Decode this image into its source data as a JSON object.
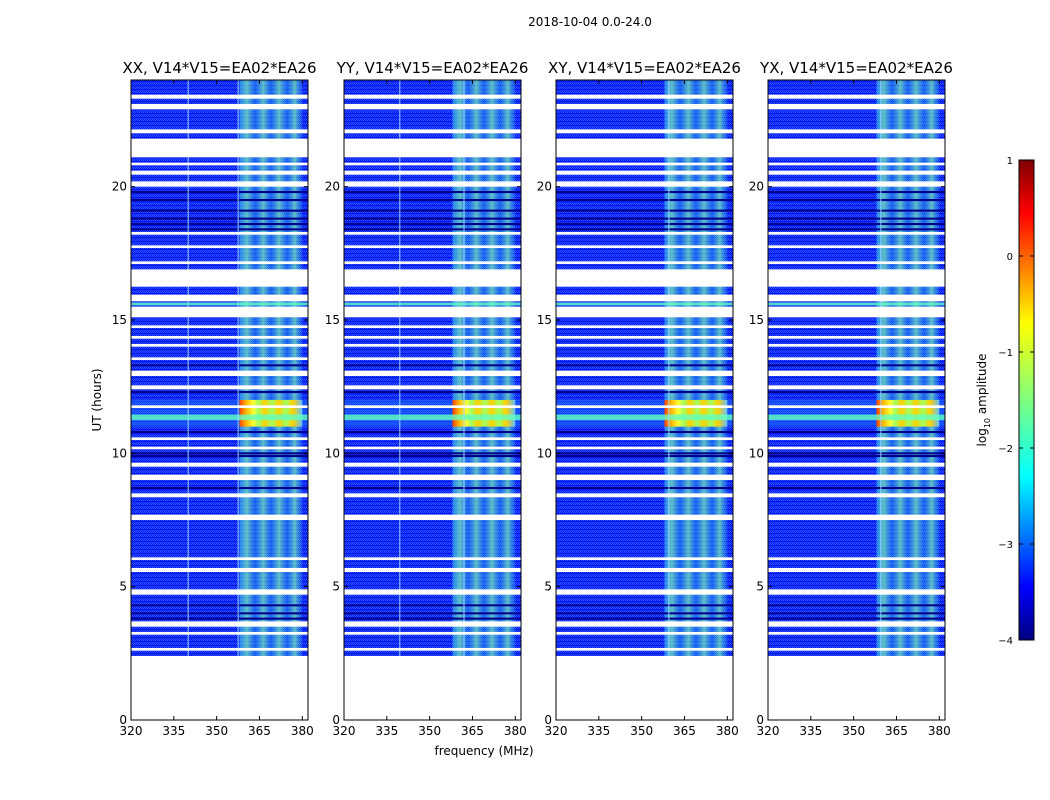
{
  "figure": {
    "suptitle": "2018-10-04 0.0-24.0",
    "xlabel": "frequency (MHz)",
    "ylabel": "UT (hours)",
    "colorbar_label_prefix": "log",
    "colorbar_label_sub": "10",
    "colorbar_label_suffix": " amplitude"
  },
  "chart_data": {
    "type": "heatmap",
    "description_of_axes": "waterfall: frequency vs UT, color = log10 amplitude",
    "xlim": [
      320,
      382
    ],
    "ylim": [
      0,
      24
    ],
    "xticks": [
      320,
      335,
      350,
      365,
      380
    ],
    "yticks": [
      0,
      5,
      10,
      15,
      20
    ],
    "color_range": [
      -4,
      1
    ],
    "colorbar_ticks": [
      1,
      0,
      -1,
      -2,
      -3,
      -4
    ],
    "colorbar_tick_labels": [
      "1",
      "0",
      "−1",
      "−2",
      "−3",
      "−4"
    ],
    "data_start_ut": 2.4,
    "panels": [
      {
        "title": "XX, V14*V15=EA02*EA26",
        "vertical_line_mhz": [
          340,
          357.5
        ]
      },
      {
        "title": "YY, V14*V15=EA02*EA26",
        "vertical_line_mhz": [
          339.5,
          362
        ]
      },
      {
        "title": "XY, V14*V15=EA02*EA26",
        "vertical_line_mhz": [
          359.5
        ]
      },
      {
        "title": "YX, V14*V15=EA02*EA26",
        "vertical_line_mhz": [
          359.5
        ]
      }
    ],
    "bright_band_mhz": [
      358,
      380
    ],
    "strong_activity_ut": [
      11.0,
      12.0
    ],
    "blank_ut_gaps": [
      [
        23.3,
        23.45
      ],
      [
        22.9,
        23.1
      ],
      [
        22.0,
        22.15
      ],
      [
        21.1,
        21.8
      ],
      [
        20.8,
        20.9
      ],
      [
        20.45,
        20.6
      ],
      [
        20.0,
        20.2
      ],
      [
        18.2,
        18.3
      ],
      [
        17.7,
        17.8
      ],
      [
        17.1,
        17.2
      ],
      [
        16.25,
        16.9
      ],
      [
        15.7,
        15.95
      ],
      [
        15.1,
        15.5
      ],
      [
        14.7,
        14.8
      ],
      [
        14.3,
        14.4
      ],
      [
        14.0,
        14.1
      ],
      [
        13.5,
        13.6
      ],
      [
        12.9,
        13.1
      ],
      [
        12.4,
        12.55
      ],
      [
        11.7,
        11.8
      ],
      [
        10.5,
        10.6
      ],
      [
        10.15,
        10.25
      ],
      [
        9.5,
        9.65
      ],
      [
        9.0,
        9.2
      ],
      [
        8.35,
        8.5
      ],
      [
        7.5,
        7.7
      ],
      [
        6.0,
        6.1
      ],
      [
        5.55,
        5.7
      ],
      [
        4.7,
        4.9
      ],
      [
        3.5,
        3.7
      ],
      [
        3.2,
        3.3
      ],
      [
        2.6,
        2.7
      ]
    ],
    "dark_ut_lines": [
      20.05,
      19.8,
      19.5,
      19.1,
      18.8,
      18.6,
      18.4,
      13.3,
      12.3,
      10.8,
      10.0,
      9.9,
      8.7,
      4.3,
      4.0,
      3.8
    ],
    "bright_ut_lines": [
      15.6,
      11.4,
      11.3
    ]
  }
}
